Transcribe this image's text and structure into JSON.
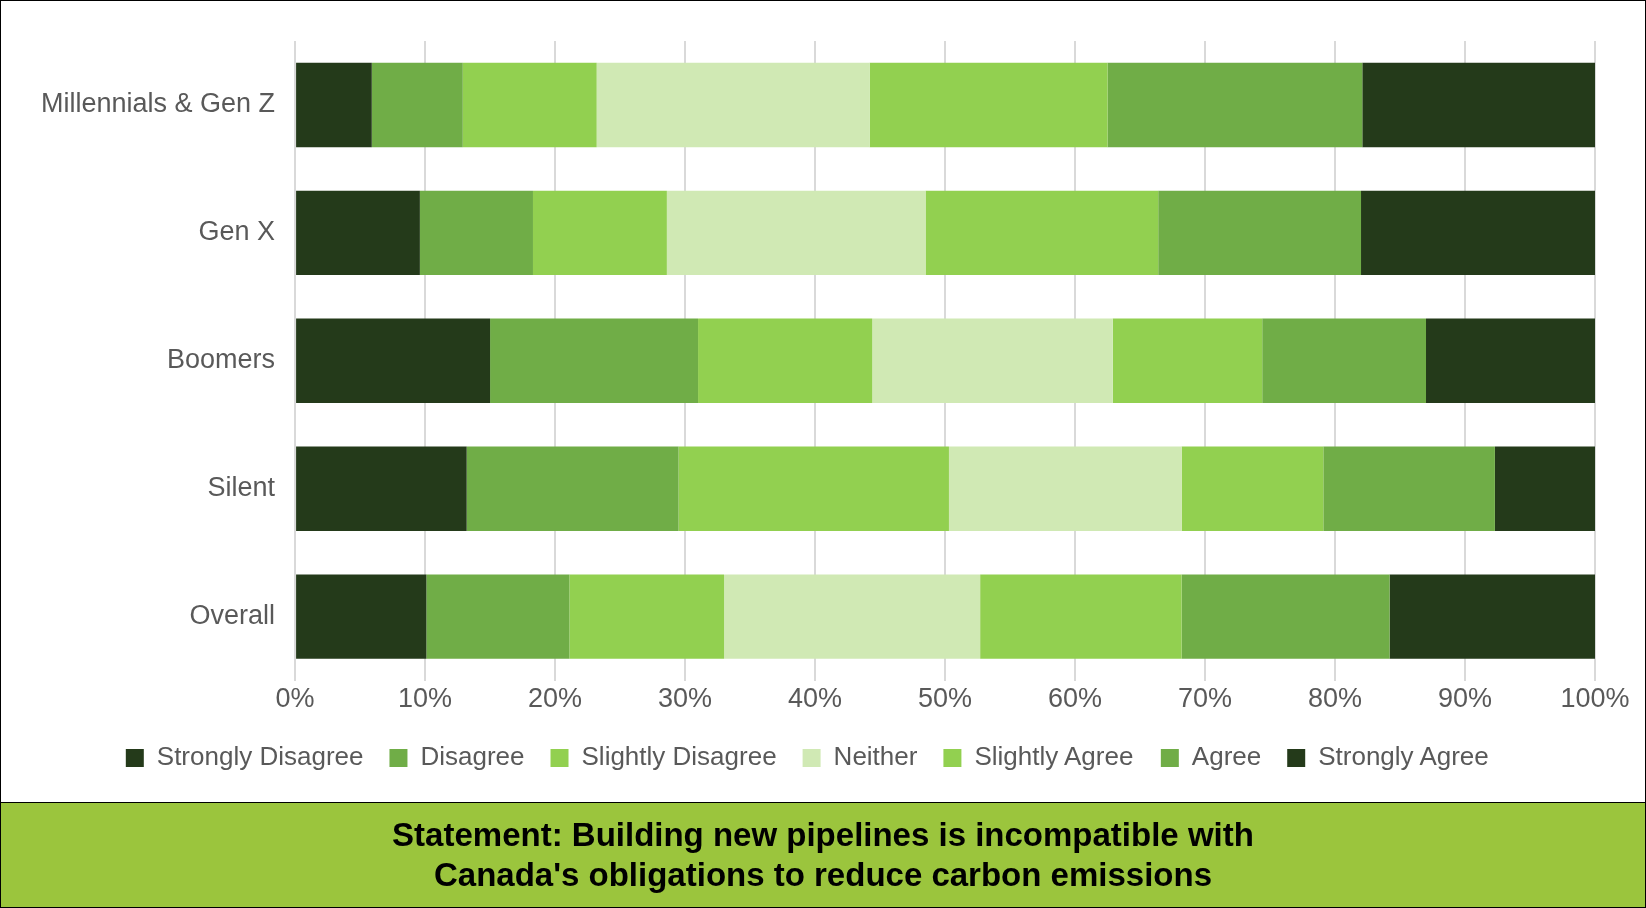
{
  "chart_data": {
    "type": "bar",
    "orientation": "horizontal",
    "stacked": true,
    "title": "Statement: Building new pipelines is incompatible with Canada's obligations to reduce carbon emissions",
    "categories": [
      "Millennials & Gen Z",
      "Gen X",
      "Boomers",
      "Silent",
      "Overall"
    ],
    "series": [
      {
        "name": "Strongly Disagree",
        "color": "#243a1a",
        "values": [
          5.9,
          9.6,
          15.0,
          13.2,
          10.1
        ]
      },
      {
        "name": "Disagree",
        "color": "#70ad47",
        "values": [
          7.0,
          8.7,
          16.0,
          16.3,
          11.0
        ]
      },
      {
        "name": "Slightly Disagree",
        "color": "#92d050",
        "values": [
          10.3,
          10.3,
          13.4,
          20.8,
          11.9
        ]
      },
      {
        "name": "Neither",
        "color": "#d0e9b4",
        "values": [
          21.0,
          19.9,
          18.5,
          17.9,
          19.7
        ]
      },
      {
        "name": "Slightly Agree",
        "color": "#92d050",
        "values": [
          18.3,
          17.9,
          11.5,
          10.9,
          15.5
        ]
      },
      {
        "name": "Agree",
        "color": "#70ad47",
        "values": [
          19.6,
          15.6,
          12.6,
          13.2,
          16.0
        ]
      },
      {
        "name": "Strongly Agree",
        "color": "#243a1a",
        "values": [
          17.9,
          18.0,
          13.0,
          7.7,
          15.8
        ]
      }
    ],
    "xlim": [
      0,
      100
    ],
    "xticks": [
      {
        "value": 0,
        "label": "0%"
      },
      {
        "value": 10,
        "label": "10%"
      },
      {
        "value": 20,
        "label": "20%"
      },
      {
        "value": 30,
        "label": "30%"
      },
      {
        "value": 40,
        "label": "40%"
      },
      {
        "value": 50,
        "label": "50%"
      },
      {
        "value": 60,
        "label": "60%"
      },
      {
        "value": 70,
        "label": "70%"
      },
      {
        "value": 80,
        "label": "80%"
      },
      {
        "value": 90,
        "label": "90%"
      },
      {
        "value": 100,
        "label": "100%"
      }
    ],
    "grid": "x",
    "legend": "bottom"
  }
}
